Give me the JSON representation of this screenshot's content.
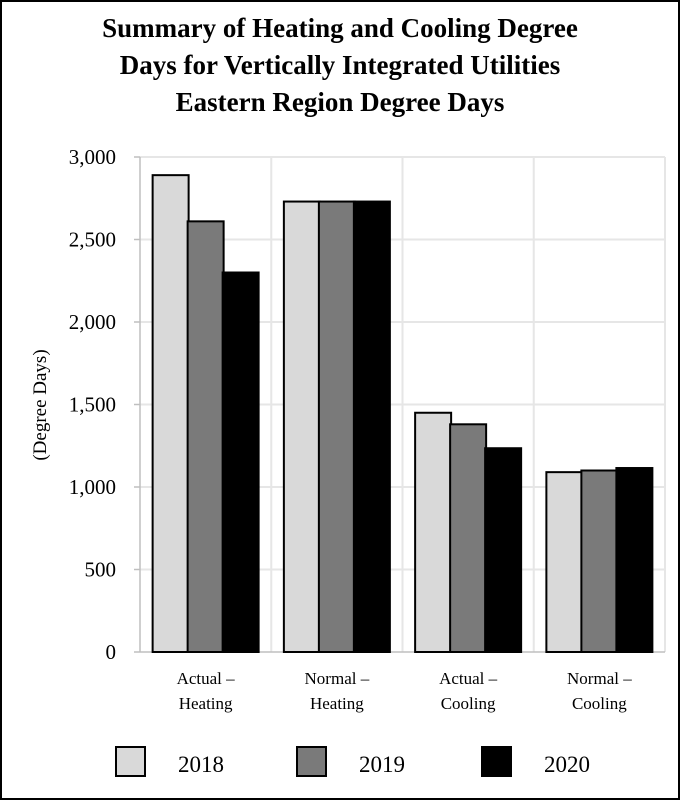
{
  "chart_data": {
    "type": "bar",
    "title_lines": [
      "Summary of Heating and Cooling Degree",
      "Days for Vertically Integrated Utilities",
      "Eastern Region Degree Days"
    ],
    "ylabel": "(Degree Days)",
    "xlabel": "",
    "ylim": [
      0,
      3000
    ],
    "yticks": [
      0,
      500,
      1000,
      1500,
      2000,
      2500,
      3000
    ],
    "ytick_labels": [
      "0",
      "500",
      "1,000",
      "1,500",
      "2,000",
      "2,500",
      "3,000"
    ],
    "categories": [
      [
        "Actual –",
        "Heating"
      ],
      [
        "Normal –",
        "Heating"
      ],
      [
        "Actual –",
        "Cooling"
      ],
      [
        "Normal –",
        "Cooling"
      ]
    ],
    "series": [
      {
        "name": "2018",
        "color": "#d9d9d9",
        "values": [
          2890,
          2730,
          1450,
          1090
        ]
      },
      {
        "name": "2019",
        "color": "#7a7a7a",
        "values": [
          2610,
          2730,
          1380,
          1100
        ]
      },
      {
        "name": "2020",
        "color": "#000000",
        "values": [
          2300,
          2730,
          1235,
          1115
        ]
      }
    ],
    "grid": true,
    "legend_position": "bottom"
  }
}
